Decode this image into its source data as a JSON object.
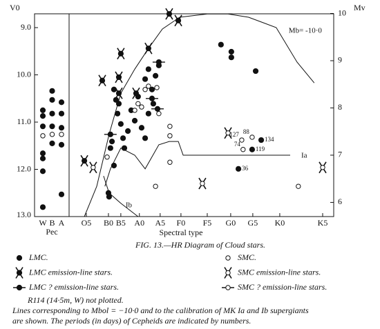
{
  "chart_data": [
    {
      "type": "scatter",
      "categories": [
        "W",
        "B",
        "A"
      ],
      "xlabel": "Pec",
      "ylim": [
        13.0,
        8.7
      ],
      "series": [
        {
          "marker": "filled",
          "x": [
            "W",
            "W",
            "W",
            "W",
            "W",
            "W",
            "W",
            "B",
            "B",
            "B",
            "B",
            "B",
            "A",
            "A",
            "A",
            "A",
            "A"
          ],
          "y": [
            10.75,
            10.87,
            11.09,
            11.66,
            11.77,
            12.04,
            12.8,
            10.34,
            10.53,
            10.82,
            11.09,
            11.45,
            10.58,
            10.82,
            11.12,
            11.48,
            12.53
          ]
        },
        {
          "marker": "open",
          "x": [
            "W",
            "B",
            "A"
          ],
          "y": [
            11.29,
            11.26,
            11.26
          ]
        }
      ]
    },
    {
      "type": "scatter",
      "xlabel": "Spectral type",
      "ylabel": "V0",
      "y2label": "Mv",
      "xlim": [
        -0.78,
        11.19
      ],
      "xticks": [
        {
          "value": 0,
          "label": "O5"
        },
        {
          "value": 1,
          "label": "B0"
        },
        {
          "value": 1.56,
          "label": "B5"
        },
        {
          "value": 2.4,
          "label": "A0"
        },
        {
          "value": 3.34,
          "label": "A5"
        },
        {
          "value": 4.28,
          "label": "F0"
        },
        {
          "value": 5.47,
          "label": "F5"
        },
        {
          "value": 6.53,
          "label": "G0"
        },
        {
          "value": 7.53,
          "label": "G5"
        },
        {
          "value": 8.75,
          "label": "K0"
        },
        {
          "value": 10.69,
          "label": "K5"
        }
      ],
      "ylim": [
        13.0,
        8.7
      ],
      "yticks": [
        {
          "value": 9,
          "label": "9.0"
        },
        {
          "value": 10,
          "label": "10.0"
        },
        {
          "value": 11,
          "label": "11.0"
        },
        {
          "value": 12,
          "label": "12.0"
        },
        {
          "value": 13,
          "label": "13.0"
        }
      ],
      "y2lim": [
        5.7,
        10.0
      ],
      "y2ticks": [
        6,
        7,
        8,
        9,
        10
      ],
      "series": [
        {
          "name": "LMC.",
          "marker": "filled",
          "x": [
            1.0,
            1.03,
            1.25,
            1.34,
            1.41,
            1.47,
            1.56,
            1.66,
            1.16,
            1.09,
            1.25,
            1.72,
            1.88,
            2.03,
            2.19,
            2.34,
            2.5,
            2.66,
            2.81,
            3.03,
            3.13,
            3.28,
            2.81,
            2.66,
            2.97,
            6.09,
            6.56,
            6.56,
            7.66,
            6.88,
            7.5,
            7.91
          ],
          "y": [
            12.5,
            12.58,
            10.31,
            10.53,
            10.82,
            10.61,
            11.04,
            11.34,
            11.41,
            11.55,
            11.92,
            11.55,
            11.19,
            10.75,
            10.97,
            10.46,
            11.12,
            11.34,
            10.82,
            10.61,
            10.02,
            9.8,
            9.88,
            10.09,
            10.31,
            9.36,
            9.51,
            9.63,
            9.92,
            11.99,
            11.58,
            11.38
          ],
          "point_labels": [
            null,
            null,
            null,
            null,
            null,
            null,
            null,
            null,
            null,
            null,
            null,
            null,
            null,
            null,
            null,
            null,
            null,
            null,
            null,
            null,
            null,
            null,
            null,
            null,
            null,
            null,
            null,
            null,
            null,
            "36",
            "119",
            "134"
          ]
        },
        {
          "name": "LMC emission-line stars.",
          "marker": "emission_filled",
          "x": [
            -0.09,
            0.72,
            1.56,
            1.47,
            2.81,
            4.16,
            3.75,
            1.47,
            2.25
          ],
          "y": [
            11.82,
            10.12,
            9.55,
            10.05,
            9.44,
            8.85,
            8.71,
            10.39,
            10.39
          ]
        },
        {
          "name": "LMC ? emission-line stars.",
          "marker": "query_filled",
          "x": [
            1.09,
            3.28,
            2.97,
            3.22
          ],
          "y": [
            11.26,
            9.73,
            10.5,
            10.72
          ]
        },
        {
          "name": "SMC.",
          "marker": "open",
          "x": [
            0.94,
            2.19,
            2.34,
            2.5,
            2.66,
            2.81,
            3.19,
            3.28,
            3.78,
            3.78,
            3.78,
            3.13,
            7.03,
            7.5,
            7.09,
            9.59
          ],
          "y": [
            11.74,
            10.75,
            10.61,
            10.68,
            10.31,
            10.24,
            10.27,
            10.82,
            11.09,
            11.29,
            11.85,
            12.36,
            11.38,
            11.32,
            11.58,
            12.36
          ],
          "point_labels": [
            null,
            null,
            null,
            null,
            null,
            null,
            null,
            null,
            null,
            null,
            null,
            null,
            "127",
            "88",
            "74",
            null
          ]
        },
        {
          "name": "SMC emission-line stars.",
          "marker": "emission_open",
          "x": [
            0.31,
            5.25,
            6.41,
            10.69
          ],
          "y": [
            11.96,
            12.3,
            11.23,
            11.96
          ]
        },
        {
          "name": "SMC ? emission-line stars.",
          "marker": "query_open",
          "x": [],
          "y": []
        }
      ],
      "curves": [
        {
          "label": "Mb= -10·0",
          "x": [
            -0.09,
            0.47,
            1.03,
            1.56,
            2.19,
            2.81,
            3.44,
            4.22,
            5.47,
            6.41,
            7.34,
            8.59,
            9.53,
            10.31
          ],
          "y": [
            13.0,
            12.36,
            11.26,
            10.39,
            9.88,
            9.44,
            9.03,
            8.78,
            8.71,
            8.71,
            8.78,
            9.0,
            9.73,
            10.17
          ]
        },
        {
          "label": "Ia",
          "x": [
            0.84,
            1.09,
            1.56,
            2.19,
            2.66,
            3.28,
            3.75,
            4.16,
            4.38,
            9.22
          ],
          "y": [
            12.36,
            11.99,
            11.55,
            11.7,
            11.99,
            11.48,
            11.41,
            11.41,
            11.7,
            11.7
          ]
        },
        {
          "label": "Ib",
          "x": [
            0.78,
            1.03,
            1.56,
            2.34
          ],
          "y": [
            12.14,
            12.5,
            12.72,
            13.0
          ]
        }
      ]
    }
  ],
  "figure_caption": "FIG. 13.—HR Diagram of Cloud stars.",
  "notes": [
    "R114 (14·5m, W) not plotted.",
    "Lines corresponding to Mbol = −10·0 and to the calibration of MK Ia and Ib supergiants",
    "are shown.   The periods (in days) of Cepheids are indicated by numbers."
  ]
}
